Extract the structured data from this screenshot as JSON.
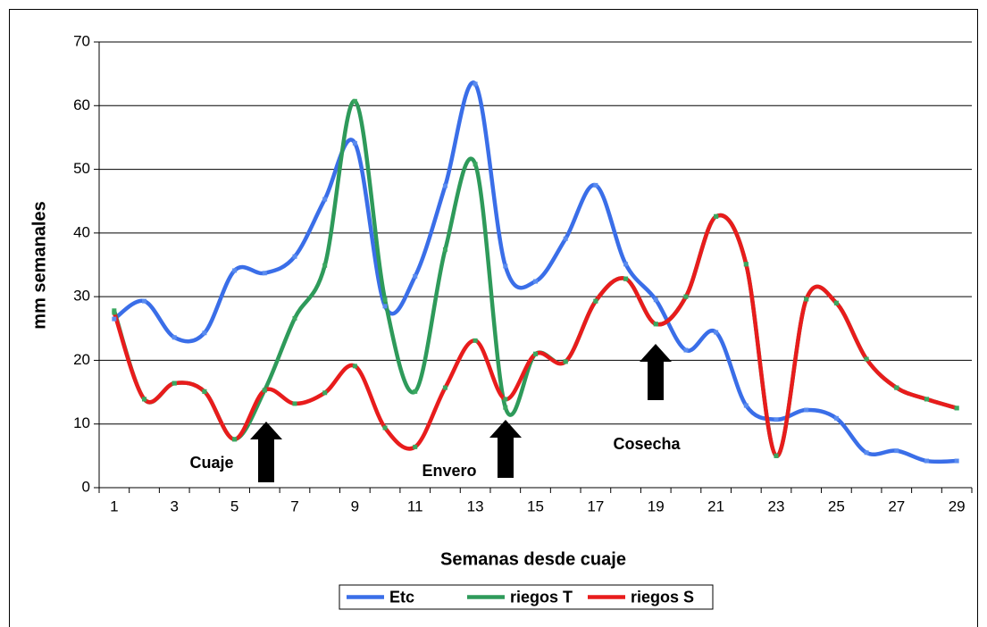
{
  "chart_data": {
    "type": "line",
    "x_label": "Semanas desde cuaje",
    "y_label": "mm semanales",
    "categories": [
      1,
      null,
      3,
      null,
      5,
      null,
      7,
      null,
      9,
      null,
      11,
      null,
      13,
      null,
      15,
      null,
      17,
      null,
      19,
      null,
      21,
      null,
      23,
      null,
      25,
      null,
      27,
      null,
      29
    ],
    "ylim": [
      0,
      70
    ],
    "yticks": [
      0,
      10,
      20,
      30,
      40,
      50,
      60,
      70
    ],
    "grid": true,
    "legend": "bottom",
    "series": [
      {
        "name": "Etc",
        "color": "#3a6ee8",
        "values": [
          26.5,
          29.3,
          23.6,
          24.3,
          34.1,
          33.7,
          36.3,
          45.3,
          54.1,
          28.5,
          33.2,
          47.4,
          63.4,
          34.8,
          32.4,
          39.1,
          47.5,
          35.1,
          29.5,
          21.6,
          24.4,
          12.9,
          10.7,
          12.2,
          10.9,
          5.5,
          5.8,
          4.2,
          4.2
        ]
      },
      {
        "name": "riegos T",
        "color": "#2e9a5a",
        "values": [
          27.8,
          13.9,
          16.4,
          15.1,
          7.6,
          15.3,
          26.6,
          34.9,
          60.7,
          29.5,
          15.1,
          37.4,
          50.8,
          12.6,
          21.0,
          19.8,
          29.3,
          32.8,
          25.7,
          30.0,
          42.6,
          35.1,
          5.0,
          29.6,
          29.0,
          20.2,
          15.7,
          13.9,
          12.5
        ]
      },
      {
        "name": "riegos S",
        "color": "#e81c1c",
        "values": [
          27.5,
          13.9,
          16.4,
          15.1,
          7.6,
          15.3,
          13.2,
          14.9,
          19.1,
          9.4,
          6.4,
          15.7,
          23.1,
          13.9,
          21.0,
          19.8,
          29.3,
          32.8,
          25.7,
          30.0,
          42.6,
          35.1,
          5.0,
          29.6,
          29.0,
          20.2,
          15.7,
          13.9,
          12.5
        ]
      }
    ],
    "annotations": [
      "Cuaje",
      "Envero",
      "Cosecha"
    ]
  }
}
